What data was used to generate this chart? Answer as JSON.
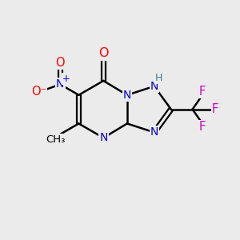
{
  "background_color": "#ebebeb",
  "bond_color": "#000000",
  "N_color": "#0000cc",
  "O_color": "#ff0000",
  "F_color": "#cc00cc",
  "H_color": "#3d8080",
  "figsize": [
    3.0,
    3.0
  ],
  "dpi": 100,
  "xlim": [
    0,
    10
  ],
  "ylim": [
    0,
    10
  ]
}
